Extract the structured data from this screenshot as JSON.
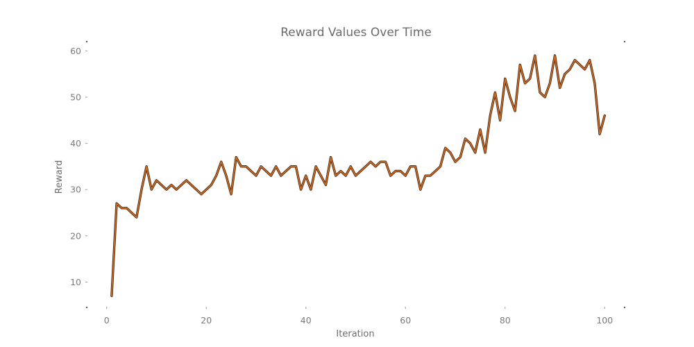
{
  "chart_data": {
    "type": "line",
    "title": "Reward Values Over Time",
    "xlabel": "Iteration",
    "ylabel": "Reward",
    "xlim": [
      -4,
      104
    ],
    "ylim": [
      4.5,
      62
    ],
    "xticks": [
      0,
      20,
      40,
      60,
      80,
      100
    ],
    "yticks": [
      10,
      20,
      30,
      40,
      50,
      60
    ],
    "grid": false,
    "legend": "none",
    "colors": {
      "line": "#d2691e",
      "line_edge": "#3a2a1a",
      "text": "#6b6b6b"
    },
    "series": [
      {
        "x": [
          1,
          2,
          3,
          4,
          5,
          6,
          7,
          8,
          9,
          10,
          11,
          12,
          13,
          14,
          15,
          16,
          17,
          18,
          19,
          20,
          21,
          22,
          23,
          24,
          25,
          26,
          27,
          28,
          29,
          30,
          31,
          32,
          33,
          34,
          35,
          36,
          37,
          38,
          39,
          40,
          41,
          42,
          43,
          44,
          45,
          46,
          47,
          48,
          49,
          50,
          51,
          52,
          53,
          54,
          55,
          56,
          57,
          58,
          59,
          60,
          61,
          62,
          63,
          64,
          65,
          66,
          67,
          68,
          69,
          70,
          71,
          72,
          73,
          74,
          75,
          76,
          77,
          78,
          79,
          80,
          81,
          82,
          83,
          84,
          85,
          86,
          87,
          88,
          89,
          90,
          91,
          92,
          93,
          94,
          95,
          96,
          97,
          98,
          99,
          100
        ],
        "values": [
          7,
          27,
          26,
          26,
          25,
          24,
          30,
          35,
          30,
          32,
          31,
          30,
          31,
          30,
          31,
          32,
          31,
          30,
          29,
          30,
          31,
          33,
          36,
          33,
          29,
          37,
          35,
          35,
          34,
          33,
          35,
          34,
          33,
          35,
          33,
          34,
          35,
          35,
          30,
          33,
          30,
          35,
          33,
          31,
          37,
          33,
          34,
          33,
          35,
          33,
          34,
          35,
          36,
          35,
          36,
          36,
          33,
          34,
          34,
          33,
          35,
          35,
          30,
          33,
          33,
          34,
          35,
          39,
          38,
          36,
          37,
          41,
          40,
          38,
          43,
          38,
          46,
          51,
          45,
          54,
          50,
          47,
          57,
          53,
          54,
          59,
          51,
          50,
          53,
          59,
          52,
          55,
          56,
          58,
          57,
          56,
          58,
          53,
          42,
          46
        ]
      }
    ]
  }
}
